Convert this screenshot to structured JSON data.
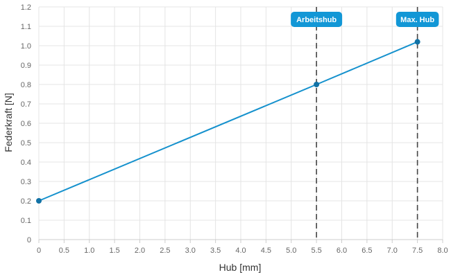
{
  "chart_data": {
    "type": "line",
    "xlabel": "Hub [mm]",
    "ylabel": "Federkraft [N]",
    "xlim": [
      0,
      8
    ],
    "ylim": [
      0,
      1.2
    ],
    "x_ticks": [
      "0",
      "0.5",
      "1.0",
      "1.5",
      "2.0",
      "2.5",
      "3.0",
      "3.5",
      "4.0",
      "4.5",
      "5.0",
      "5.5",
      "6.0",
      "6.5",
      "7.0",
      "7.5",
      "8.0"
    ],
    "y_ticks": [
      "0",
      "0.1",
      "0.2",
      "0.3",
      "0.4",
      "0.5",
      "0.6",
      "0.7",
      "0.8",
      "0.9",
      "1.0",
      "1.1",
      "1.2"
    ],
    "grid": true,
    "series": [
      {
        "x": [
          0,
          5.5,
          7.5
        ],
        "y": [
          0.2,
          0.8,
          1.02
        ],
        "color": "#1591cd"
      }
    ],
    "reference_lines": [
      {
        "x": 5.5,
        "label": "Arbeitshub"
      },
      {
        "x": 7.5,
        "label": "Max. Hub"
      }
    ],
    "colors": {
      "line": "#1591cd",
      "point": "#1272a6",
      "marker_badge": "#1297d6",
      "reference_line": "#444444",
      "grid": "#e4e4e4"
    }
  }
}
